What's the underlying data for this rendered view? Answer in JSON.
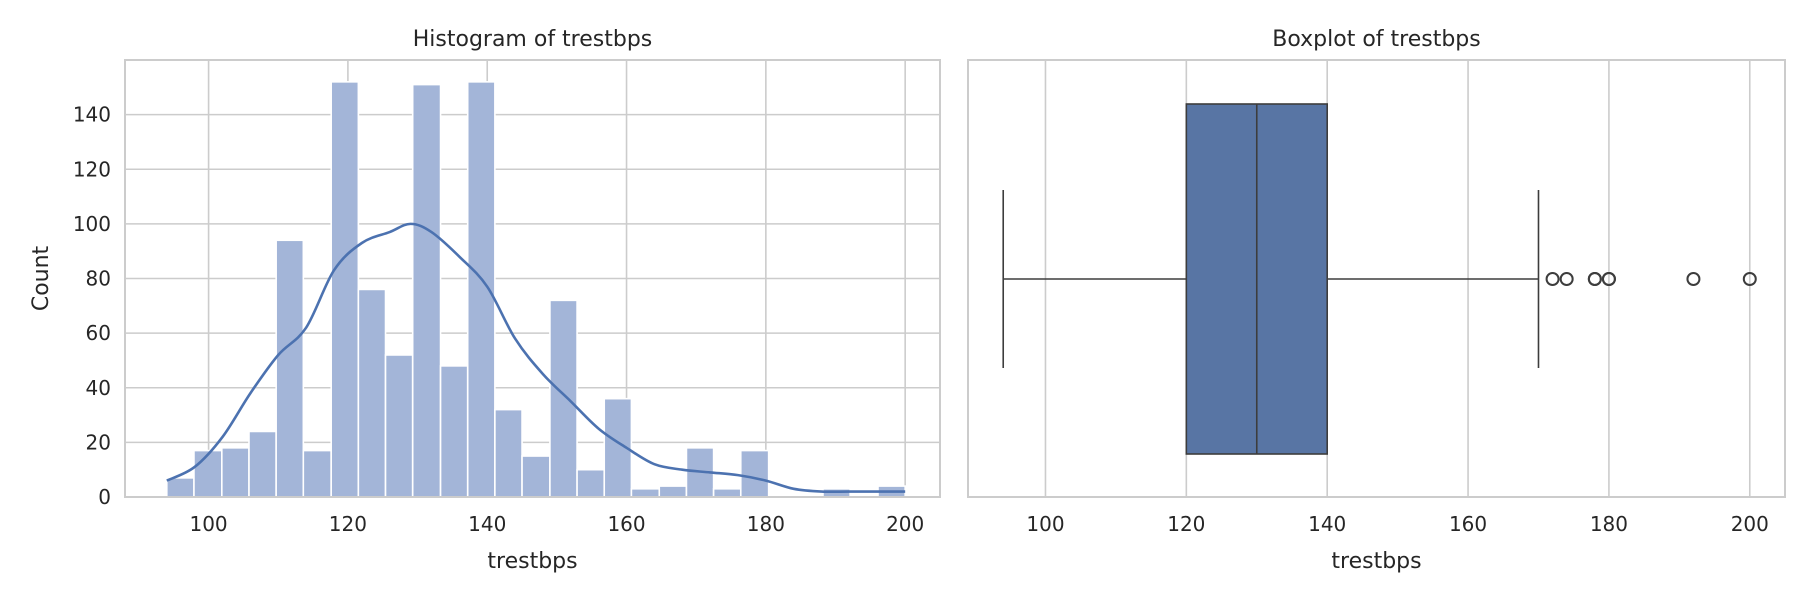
{
  "chart_data": [
    {
      "type": "histogram",
      "title": "Histogram of trestbps",
      "xlabel": "trestbps",
      "ylabel": "Count",
      "xlim": [
        88,
        205
      ],
      "ylim": [
        0,
        160
      ],
      "xticks": [
        "100",
        "120",
        "140",
        "160",
        "180",
        "200"
      ],
      "yticks": [
        "0",
        "20",
        "40",
        "60",
        "80",
        "100",
        "120",
        "140"
      ],
      "grid": true,
      "bar_color": "#a3b5d8",
      "kde_color": "#4c72b0",
      "bins": [
        {
          "start": 94.0,
          "end": 97.9,
          "count": 7
        },
        {
          "start": 97.9,
          "end": 101.9,
          "count": 17
        },
        {
          "start": 101.9,
          "end": 105.8,
          "count": 18
        },
        {
          "start": 105.8,
          "end": 109.7,
          "count": 24
        },
        {
          "start": 109.7,
          "end": 113.6,
          "count": 94
        },
        {
          "start": 113.6,
          "end": 117.6,
          "count": 17
        },
        {
          "start": 117.6,
          "end": 121.5,
          "count": 152
        },
        {
          "start": 121.5,
          "end": 125.4,
          "count": 76
        },
        {
          "start": 125.4,
          "end": 129.3,
          "count": 52
        },
        {
          "start": 129.3,
          "end": 133.3,
          "count": 151
        },
        {
          "start": 133.3,
          "end": 137.2,
          "count": 48
        },
        {
          "start": 137.2,
          "end": 141.1,
          "count": 152
        },
        {
          "start": 141.1,
          "end": 145.0,
          "count": 32
        },
        {
          "start": 145.0,
          "end": 149.0,
          "count": 15
        },
        {
          "start": 149.0,
          "end": 152.9,
          "count": 72
        },
        {
          "start": 152.9,
          "end": 156.8,
          "count": 10
        },
        {
          "start": 156.8,
          "end": 160.7,
          "count": 36
        },
        {
          "start": 160.7,
          "end": 164.7,
          "count": 3
        },
        {
          "start": 164.7,
          "end": 168.6,
          "count": 4
        },
        {
          "start": 168.6,
          "end": 172.5,
          "count": 18
        },
        {
          "start": 172.5,
          "end": 176.4,
          "count": 3
        },
        {
          "start": 176.4,
          "end": 180.4,
          "count": 17
        },
        {
          "start": 180.4,
          "end": 184.3,
          "count": 0
        },
        {
          "start": 184.3,
          "end": 188.2,
          "count": 0
        },
        {
          "start": 188.2,
          "end": 192.1,
          "count": 3
        },
        {
          "start": 192.1,
          "end": 196.1,
          "count": 0
        },
        {
          "start": 196.1,
          "end": 200.0,
          "count": 4
        }
      ],
      "kde": {
        "x": [
          94,
          98,
          102,
          106,
          110,
          114,
          118,
          122,
          126,
          129,
          132,
          136,
          140,
          144,
          148,
          152,
          156,
          160,
          164,
          168,
          172,
          176,
          180,
          184,
          188,
          192,
          196,
          200
        ],
        "y": [
          6,
          11,
          22,
          38,
          52,
          62,
          83,
          93,
          97,
          100,
          97,
          88,
          77,
          58,
          45,
          35,
          25,
          18,
          12,
          10,
          9,
          8,
          6,
          3,
          2,
          2,
          2,
          2
        ]
      }
    },
    {
      "type": "boxplot",
      "title": "Boxplot of trestbps",
      "xlabel": "trestbps",
      "xlim": [
        89,
        205
      ],
      "xticks": [
        "100",
        "120",
        "140",
        "160",
        "180",
        "200"
      ],
      "grid": true,
      "box_color": "#5875a4",
      "stats": {
        "whisker_low": 94,
        "q1": 120,
        "median": 130,
        "q3": 140,
        "whisker_high": 170
      },
      "outliers": [
        172,
        174,
        178,
        178,
        180,
        180,
        192,
        200
      ]
    }
  ]
}
